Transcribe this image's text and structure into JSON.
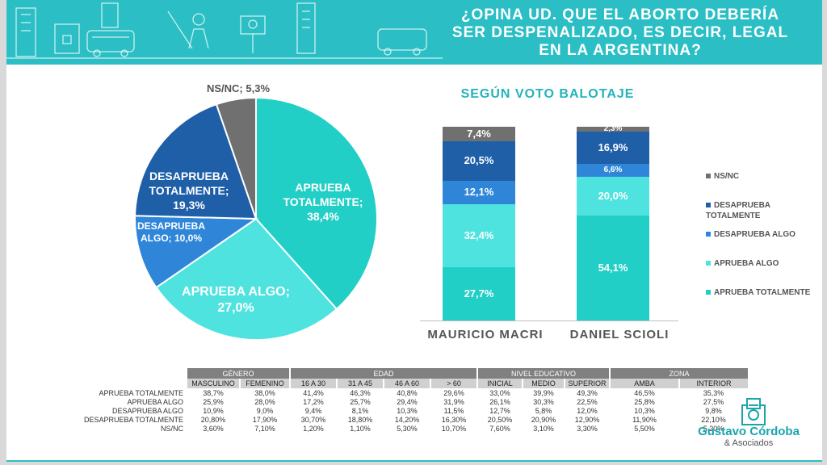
{
  "header": {
    "title": "¿OPINA UD. QUE EL ABORTO DEBERÍA SER DESPENALIZADO, ES DECIR, LEGAL EN LA ARGENTINA?"
  },
  "colors": {
    "teal": "#2bbfc5",
    "aprueba_totalmente": "#22cfc6",
    "aprueba_algo": "#4fe3e0",
    "desaprueba_algo": "#2f86d9",
    "desaprueba_totalmente": "#1f5fa8",
    "nsnc": "#707070"
  },
  "chart_data": [
    {
      "type": "pie",
      "title": "",
      "slices": [
        {
          "label": "APRUEBA TOTALMENTE; 38,4%",
          "value": 38.4,
          "color": "#22cfc6"
        },
        {
          "label": "APRUEBA ALGO; 27,0%",
          "value": 27.0,
          "color": "#4fe3e0"
        },
        {
          "label": "DESAPRUEBA ALGO; 10,0%",
          "value": 10.0,
          "color": "#2f86d9"
        },
        {
          "label": "DESAPRUEBA TOTALMENTE; 19,3%",
          "value": 19.3,
          "color": "#1f5fa8"
        },
        {
          "label": "NS/NC; 5,3%",
          "value": 5.3,
          "color": "#707070"
        }
      ]
    },
    {
      "type": "bar",
      "stacked": true,
      "title": "SEGÚN VOTO BALOTAJE",
      "categories": [
        "MAURICIO MACRI",
        "DANIEL SCIOLI"
      ],
      "series": [
        {
          "name": "APRUEBA TOTALMENTE",
          "values": [
            27.7,
            54.1
          ],
          "labels": [
            "27,7%",
            "54,1%"
          ],
          "color": "#22cfc6"
        },
        {
          "name": "APRUEBA ALGO",
          "values": [
            32.4,
            20.0
          ],
          "labels": [
            "32,4%",
            "20,0%"
          ],
          "color": "#4fe3e0"
        },
        {
          "name": "DESAPRUEBA ALGO",
          "values": [
            12.1,
            6.6
          ],
          "labels": [
            "12,1%",
            "6,6%"
          ],
          "color": "#2f86d9"
        },
        {
          "name": "DESAPRUEBA TOTALMENTE",
          "values": [
            20.5,
            16.9
          ],
          "labels": [
            "20,5%",
            "16,9%"
          ],
          "color": "#1f5fa8"
        },
        {
          "name": "NS/NC",
          "values": [
            7.4,
            2.3
          ],
          "labels": [
            "7,4%",
            "2,3%"
          ],
          "color": "#707070"
        }
      ],
      "legend": [
        "NS/NC",
        "DESAPRUEBA TOTALMENTE",
        "DESAPRUEBA ALGO",
        "APRUEBA ALGO",
        "APRUEBA TOTALMENTE"
      ],
      "legend_position": "right"
    },
    {
      "type": "table",
      "groups": [
        "GÉNERO",
        "EDAD",
        "NIVEL EDUCATIVO",
        "ZONA"
      ],
      "columns": [
        "MASCULINO",
        "FEMENINO",
        "16 A 30",
        "31 A 45",
        "46 A 60",
        "> 60",
        "INICIAL",
        "MEDIO",
        "SUPERIOR",
        "AMBA",
        "INTERIOR"
      ],
      "rows": [
        {
          "label": "APRUEBA TOTALMENTE",
          "values": [
            "38,7%",
            "38,0%",
            "41,4%",
            "46,3%",
            "40,8%",
            "29,6%",
            "33,0%",
            "39,9%",
            "49,3%",
            "46,5%",
            "35,3%"
          ]
        },
        {
          "label": "APRUEBA ALGO",
          "values": [
            "25,9%",
            "28,0%",
            "17,2%",
            "25,7%",
            "29,4%",
            "31,9%",
            "26,1%",
            "30,3%",
            "22,5%",
            "25,8%",
            "27,5%"
          ]
        },
        {
          "label": "DESAPRUEBA ALGO",
          "values": [
            "10,9%",
            "9,0%",
            "9,4%",
            "8,1%",
            "10,3%",
            "11,5%",
            "12,7%",
            "5,8%",
            "12,0%",
            "10,3%",
            "9,8%"
          ]
        },
        {
          "label": "DESAPRUEBA TOTALMENTE",
          "values": [
            "20,80%",
            "17,90%",
            "30,70%",
            "18,80%",
            "14,20%",
            "16,30%",
            "20,50%",
            "20,90%",
            "12,90%",
            "11,90%",
            "22,10%"
          ]
        },
        {
          "label": "NS/NC",
          "values": [
            "3,60%",
            "7,10%",
            "1,20%",
            "1,10%",
            "5,30%",
            "10,70%",
            "7,60%",
            "3,10%",
            "3,30%",
            "5,50%",
            "5,20%"
          ]
        }
      ]
    }
  ],
  "logo": {
    "name": "Gustavo Córdoba",
    "sub": "& Asociados"
  }
}
